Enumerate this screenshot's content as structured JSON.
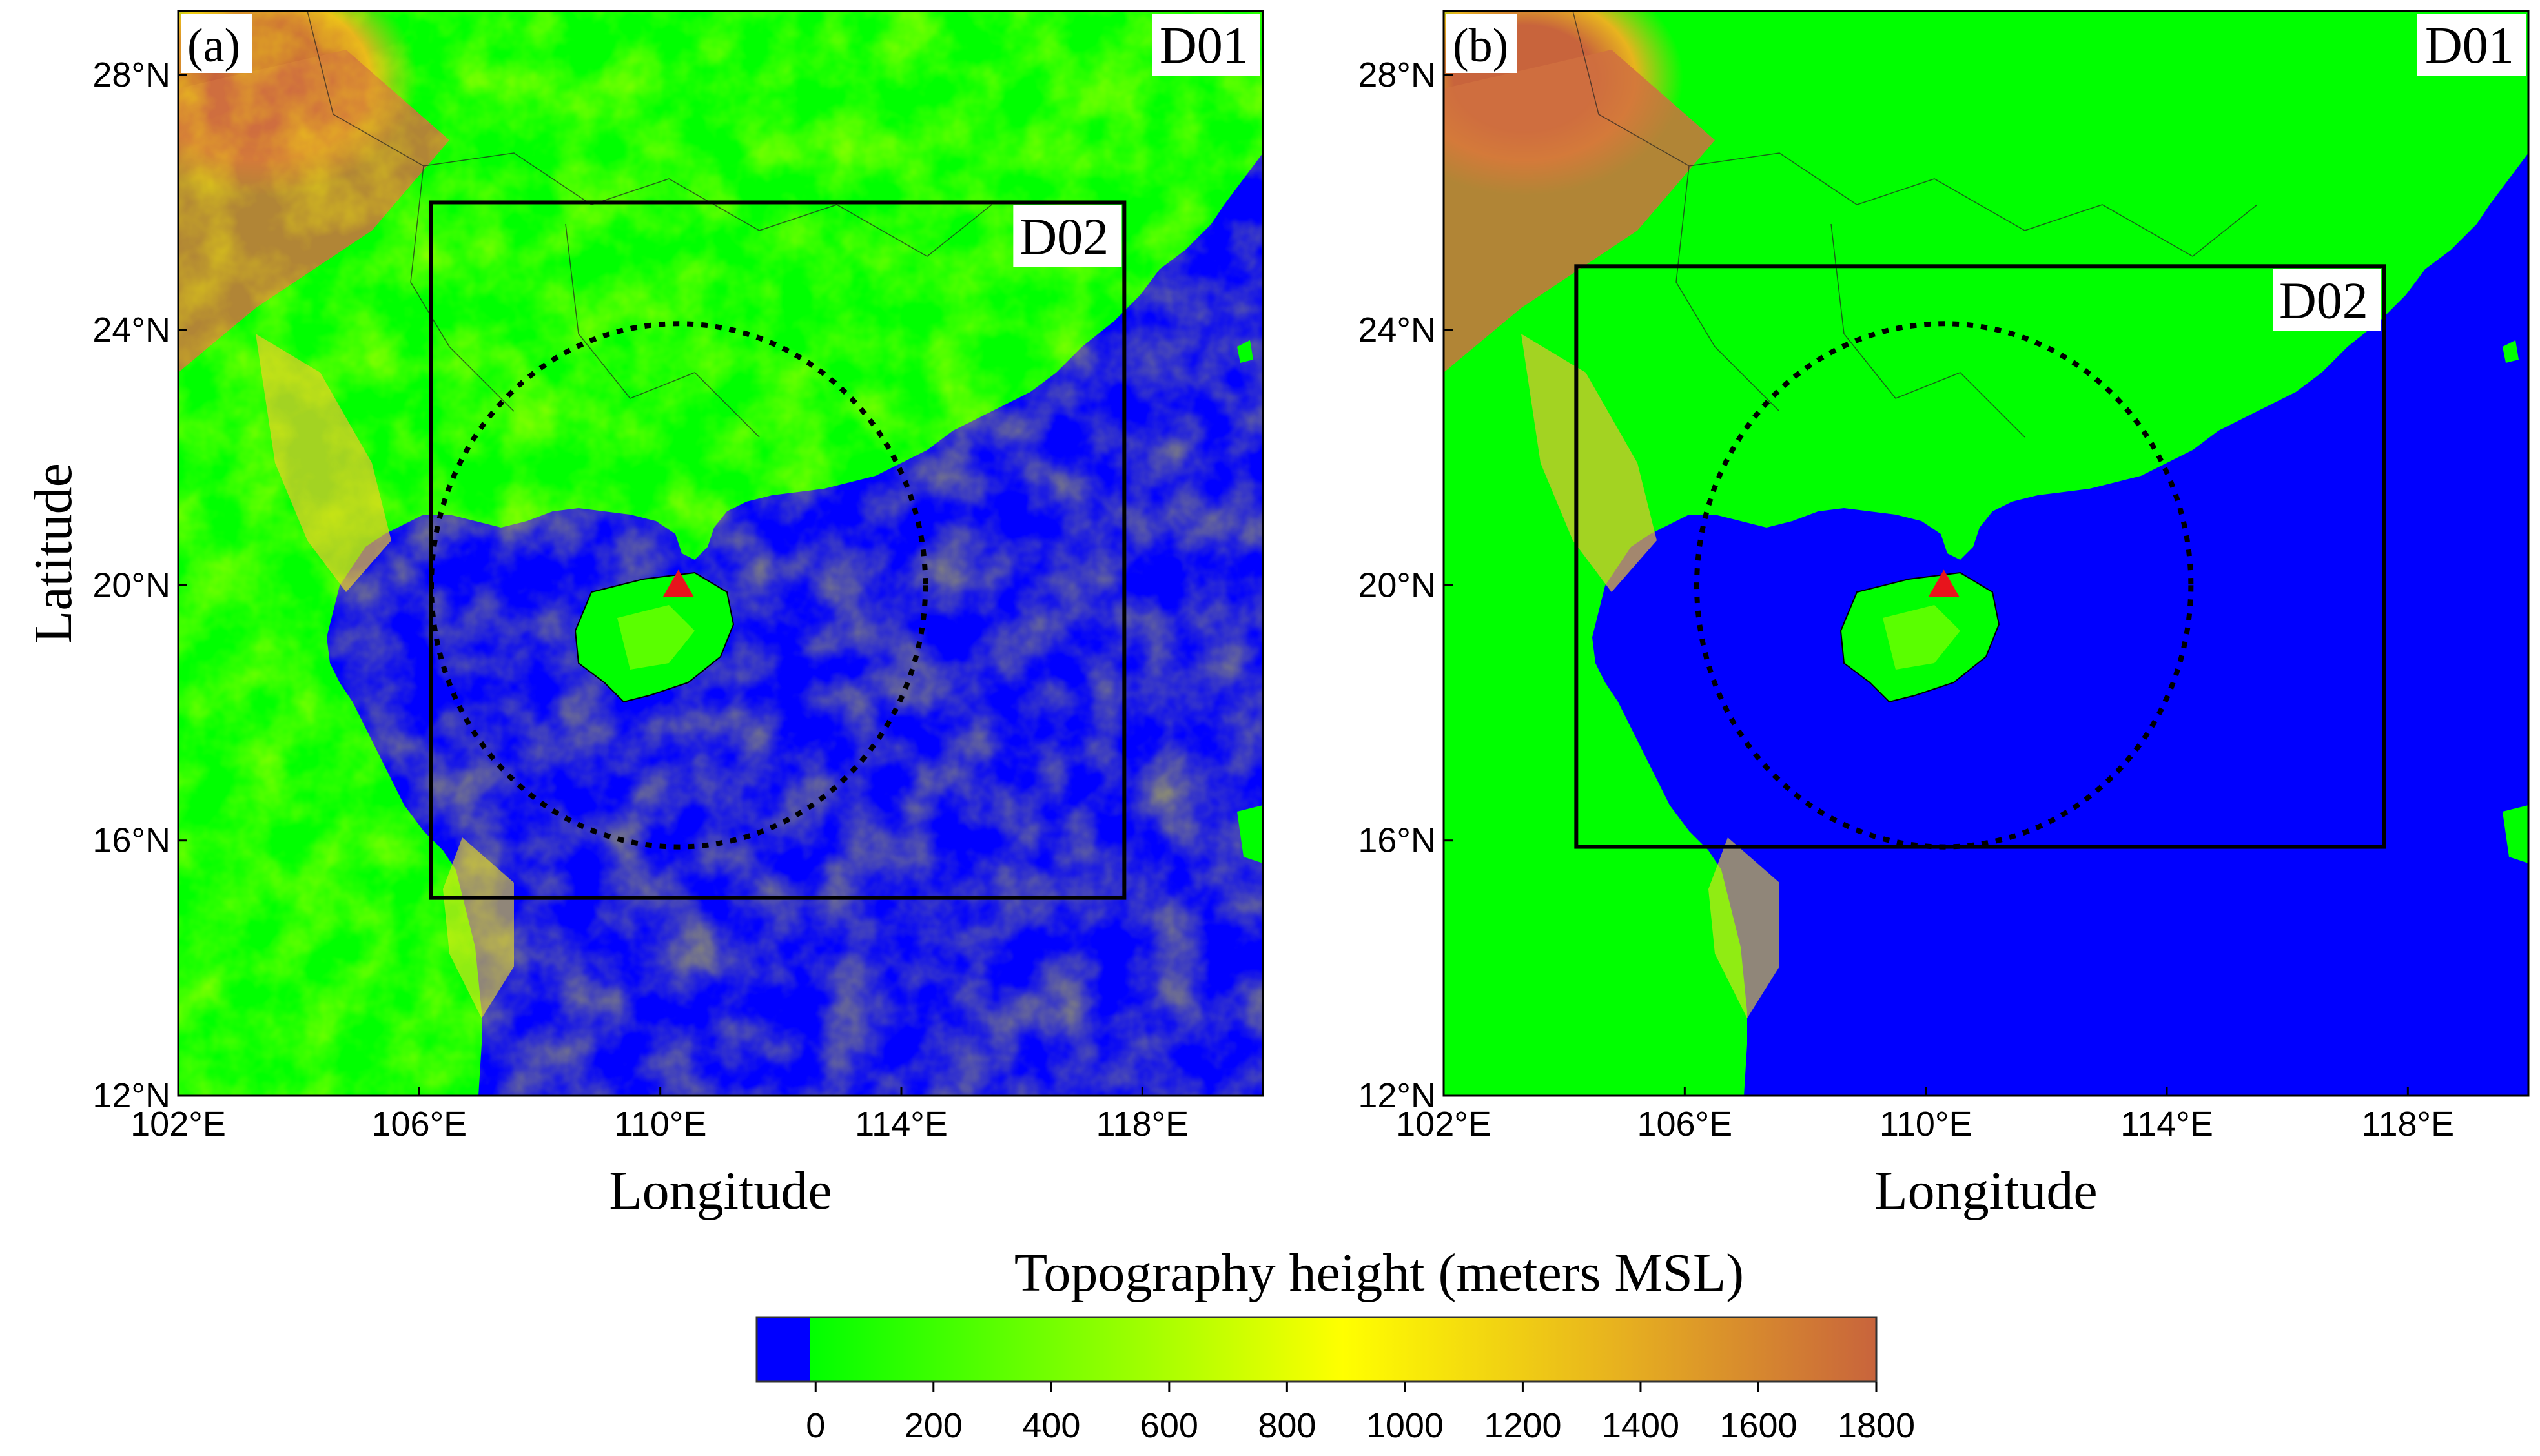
{
  "panels": [
    {
      "label": "(a)",
      "outer_domain": "D01",
      "inner_domain": "D02",
      "inner_box": {
        "lon_min": 106.2,
        "lon_max": 117.7,
        "lat_min": 15.1,
        "lat_max": 26.0
      },
      "circle": {
        "center_lon": 110.3,
        "center_lat": 20.0,
        "radius_deg": 4.1
      },
      "marker": {
        "lon": 110.3,
        "lat": 20.0,
        "color": "#e8141c"
      }
    },
    {
      "label": "(b)",
      "outer_domain": "D01",
      "inner_domain": "D02",
      "inner_box": {
        "lon_min": 104.2,
        "lon_max": 117.6,
        "lat_min": 15.9,
        "lat_max": 25.0
      },
      "circle": {
        "center_lon": 110.3,
        "center_lat": 20.0,
        "radius_deg": 4.1
      },
      "marker": {
        "lon": 110.3,
        "lat": 20.0,
        "color": "#e8141c"
      }
    }
  ],
  "axes": {
    "lon_range": [
      102,
      120
    ],
    "lat_range": [
      12,
      29
    ],
    "x_ticks": [
      "102°E",
      "106°E",
      "110°E",
      "114°E",
      "118°E"
    ],
    "x_tick_values": [
      102,
      106,
      110,
      114,
      118
    ],
    "y_ticks": [
      "28°N",
      "24°N",
      "20°N",
      "16°N",
      "12°N"
    ],
    "y_tick_values": [
      28,
      24,
      20,
      16,
      12
    ],
    "xlabel": "Longitude",
    "ylabel": "Latitude"
  },
  "colorbar": {
    "title": "Topography height (meters MSL)",
    "tick_labels": [
      "0",
      "200",
      "400",
      "600",
      "800",
      "1000",
      "1200",
      "1400",
      "1600",
      "1800"
    ],
    "tick_values": [
      0,
      200,
      400,
      600,
      800,
      1000,
      1200,
      1400,
      1600,
      1800
    ],
    "range": [
      -100,
      1800
    ],
    "colors": {
      "water": "#0000ff",
      "low": "#00ff00",
      "mid_low": "#80ff00",
      "mid": "#ffff00",
      "mid_high": "#e8b41e",
      "high": "#c8643c"
    }
  },
  "chart_data": {
    "type": "heatmap",
    "title": "Topography height (meters MSL)",
    "xlabel": "Longitude",
    "ylabel": "Latitude",
    "xlim": [
      102,
      120
    ],
    "ylim": [
      12,
      29
    ],
    "value_range": [
      0,
      1800
    ],
    "unit": "meters MSL"
  }
}
